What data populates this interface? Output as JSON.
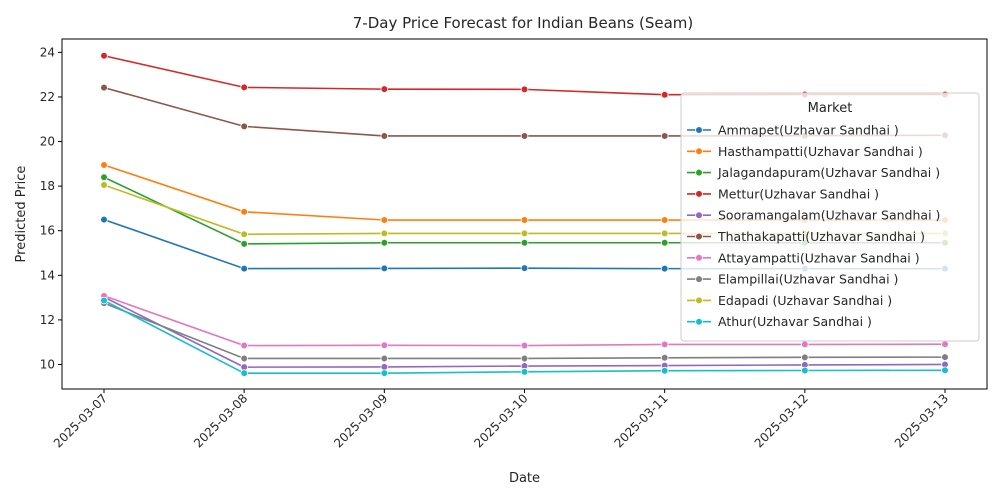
{
  "chart_data": {
    "type": "line",
    "title": "7-Day Price Forecast for Indian Beans (Seam)",
    "xlabel": "Date",
    "ylabel": "Predicted Price",
    "x": [
      "2025-03-07",
      "2025-03-08",
      "2025-03-09",
      "2025-03-10",
      "2025-03-11",
      "2025-03-12",
      "2025-03-13"
    ],
    "ylim": [
      8.9,
      24.6
    ],
    "yticks": [
      10,
      12,
      14,
      16,
      18,
      20,
      22,
      24
    ],
    "grid": false,
    "legend": {
      "title": "Market",
      "placement": "right"
    },
    "series": [
      {
        "name": "Ammapet(Uzhavar Sandhai )",
        "color": "#1f77b4",
        "values": [
          16.5,
          14.3,
          14.31,
          14.32,
          14.3,
          14.3,
          14.3
        ]
      },
      {
        "name": "Hasthampatti(Uzhavar Sandhai )",
        "color": "#ff7f0e",
        "values": [
          18.95,
          16.85,
          16.48,
          16.48,
          16.48,
          16.48,
          16.48
        ]
      },
      {
        "name": "Jalagandapuram(Uzhavar Sandhai )",
        "color": "#2ca02c",
        "values": [
          18.4,
          15.41,
          15.46,
          15.46,
          15.46,
          15.46,
          15.46
        ]
      },
      {
        "name": "Mettur(Uzhavar Sandhai )",
        "color": "#d62728",
        "values": [
          23.85,
          22.43,
          22.35,
          22.34,
          22.1,
          22.11,
          22.11
        ]
      },
      {
        "name": "Sooramangalam(Uzhavar Sandhai )",
        "color": "#9467bd",
        "values": [
          13.02,
          9.88,
          9.89,
          9.93,
          9.95,
          9.98,
          10.0
        ]
      },
      {
        "name": "Thathakapatti(Uzhavar Sandhai )",
        "color": "#8c564b",
        "values": [
          22.42,
          20.68,
          20.25,
          20.25,
          20.25,
          20.26,
          20.28
        ]
      },
      {
        "name": "Attayampatti(Uzhavar Sandhai )",
        "color": "#e377c2",
        "values": [
          13.08,
          10.85,
          10.86,
          10.85,
          10.9,
          10.9,
          10.91
        ]
      },
      {
        "name": "Elampillai(Uzhavar Sandhai )",
        "color": "#7f7f7f",
        "values": [
          12.75,
          10.27,
          10.27,
          10.27,
          10.3,
          10.32,
          10.33
        ]
      },
      {
        "name": "Edapadi (Uzhavar Sandhai )",
        "color": "#bcbd22",
        "values": [
          18.05,
          15.84,
          15.88,
          15.88,
          15.88,
          15.88,
          15.88
        ]
      },
      {
        "name": "Athur(Uzhavar Sandhai )",
        "color": "#17becf",
        "values": [
          12.87,
          9.61,
          9.61,
          9.67,
          9.72,
          9.73,
          9.74
        ]
      }
    ]
  }
}
